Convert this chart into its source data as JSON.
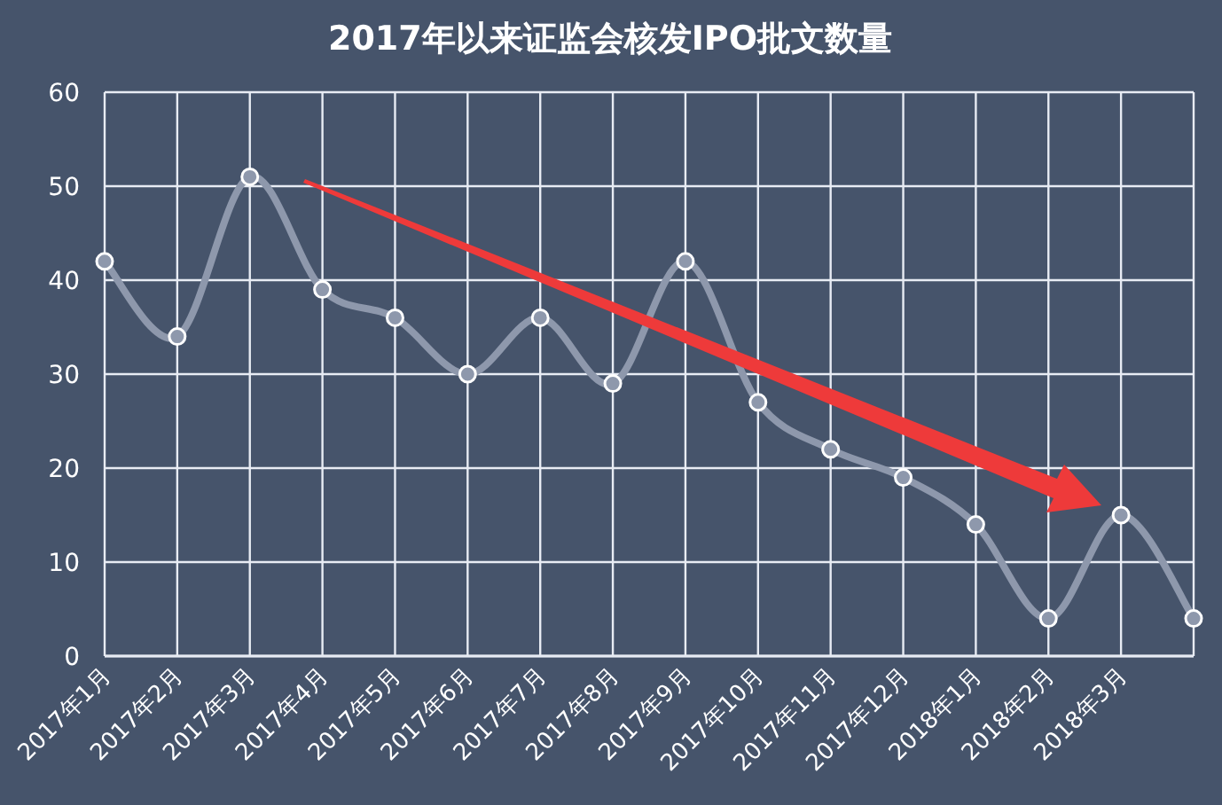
{
  "chart_data": {
    "type": "line",
    "title": "2017年以来证监会核发IPO批文数量",
    "categories": [
      "2017年1月",
      "2017年2月",
      "2017年3月",
      "2017年4月",
      "2017年5月",
      "2017年6月",
      "2017年7月",
      "2017年8月",
      "2017年9月",
      "2017年10月",
      "2017年11月",
      "2017年12月",
      "2018年1月",
      "2018年2月",
      "2018年3月",
      null
    ],
    "values": [
      42,
      34,
      51,
      39,
      36,
      30,
      36,
      29,
      42,
      27,
      22,
      19,
      14,
      4,
      15,
      4
    ],
    "color": "#8e98ac",
    "ylim": [
      0,
      60
    ],
    "yticks": [
      0,
      10,
      20,
      30,
      40,
      50,
      60
    ],
    "grid": true,
    "marker": "circle"
  }
}
